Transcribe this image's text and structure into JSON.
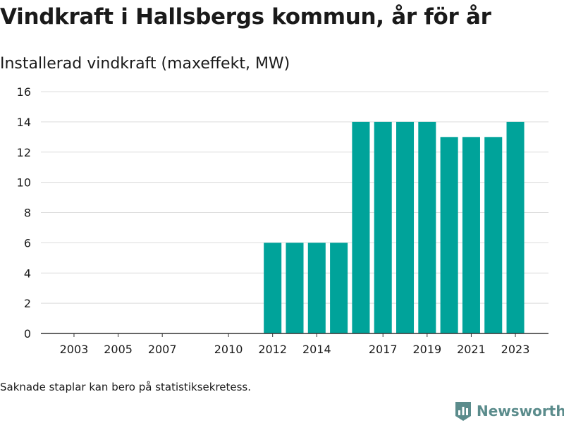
{
  "title": "Vindkraft i Hallsbergs kommun, år för år",
  "subtitle": "Installerad vindkraft (maxeffekt, MW)",
  "footnote": "Saknade staplar kan bero på statistiksekretess.",
  "brand": {
    "name": "Newsworthy"
  },
  "colors": {
    "bar": "#00a39a",
    "grid": "#dcdcdc",
    "axis": "#333333",
    "text": "#1a1a1a",
    "brand": "#5b8c8c"
  },
  "chart_data": {
    "type": "bar",
    "title": "Vindkraft i Hallsbergs kommun, år för år",
    "subtitle": "Installerad vindkraft (maxeffekt, MW)",
    "xlabel": "",
    "ylabel": "",
    "ylim": [
      0,
      16
    ],
    "yticks": [
      0,
      2,
      4,
      6,
      8,
      10,
      12,
      14,
      16
    ],
    "xlim": [
      2001.5,
      2024.5
    ],
    "xticks": [
      2003,
      2005,
      2007,
      2010,
      2012,
      2014,
      2017,
      2019,
      2021,
      2023
    ],
    "grid": true,
    "legend": "none",
    "categories": [
      2012,
      2013,
      2014,
      2015,
      2016,
      2017,
      2018,
      2019,
      2020,
      2021,
      2022,
      2023
    ],
    "values": [
      6,
      6,
      6,
      6,
      14,
      14,
      14,
      14,
      13,
      13,
      13,
      14
    ]
  }
}
